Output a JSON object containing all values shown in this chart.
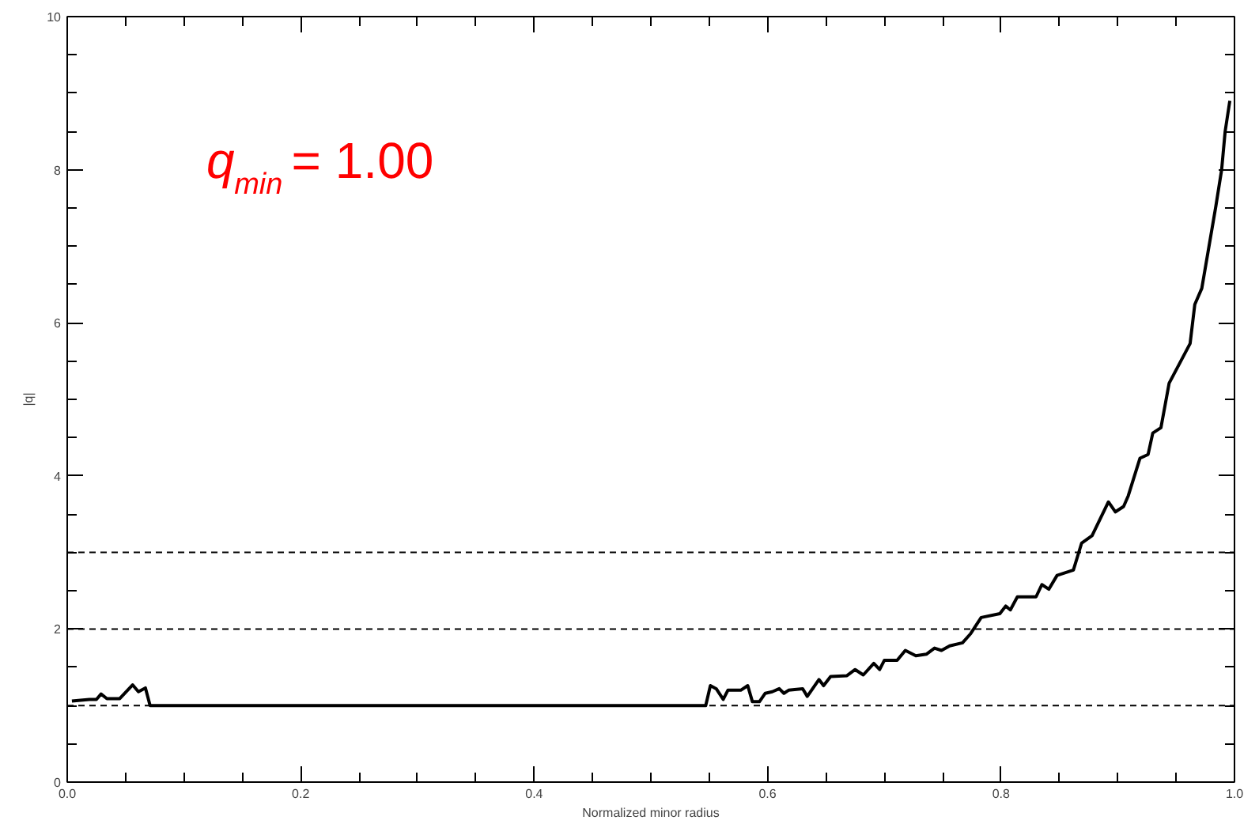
{
  "chart_data": {
    "type": "line",
    "xlabel": "Normalized minor radius",
    "ylabel": "|q|",
    "annotations": [
      "q$_{min}$ = 1.00"
    ],
    "x": [
      0.004,
      0.019,
      0.025,
      0.029,
      0.034,
      0.045,
      0.056,
      0.061,
      0.067,
      0.071,
      0.547,
      0.551,
      0.556,
      0.562,
      0.566,
      0.577,
      0.583,
      0.587,
      0.593,
      0.598,
      0.604,
      0.61,
      0.614,
      0.618,
      0.63,
      0.634,
      0.644,
      0.648,
      0.654,
      0.668,
      0.675,
      0.682,
      0.691,
      0.696,
      0.7,
      0.711,
      0.718,
      0.727,
      0.736,
      0.743,
      0.749,
      0.756,
      0.767,
      0.774,
      0.783,
      0.799,
      0.804,
      0.808,
      0.814,
      0.83,
      0.835,
      0.841,
      0.848,
      0.862,
      0.869,
      0.878,
      0.892,
      0.898,
      0.905,
      0.909,
      0.919,
      0.926,
      0.93,
      0.937,
      0.944,
      0.962,
      0.966,
      0.972,
      0.984,
      0.989,
      0.992,
      0.996
    ],
    "series": [
      {
        "color": "#000000",
        "values": [
          1.06,
          1.08,
          1.08,
          1.15,
          1.09,
          1.09,
          1.27,
          1.18,
          1.23,
          1.0,
          1.0,
          1.26,
          1.22,
          1.08,
          1.2,
          1.2,
          1.26,
          1.05,
          1.05,
          1.16,
          1.18,
          1.22,
          1.16,
          1.2,
          1.22,
          1.12,
          1.34,
          1.26,
          1.38,
          1.39,
          1.47,
          1.4,
          1.55,
          1.47,
          1.59,
          1.59,
          1.72,
          1.65,
          1.67,
          1.75,
          1.72,
          1.78,
          1.82,
          1.94,
          2.15,
          2.2,
          2.3,
          2.25,
          2.42,
          2.42,
          2.58,
          2.52,
          2.7,
          2.77,
          3.12,
          3.22,
          3.66,
          3.53,
          3.6,
          3.74,
          4.23,
          4.28,
          4.56,
          4.63,
          5.21,
          5.73,
          6.24,
          6.45,
          7.52,
          8.0,
          8.5,
          8.9
        ]
      }
    ],
    "xlim": [
      0,
      1
    ],
    "ylim": [
      0,
      10
    ],
    "xticks": [
      {
        "value": 0,
        "label": "0.0"
      },
      {
        "value": 0.05,
        "label": null
      },
      {
        "value": 0.1,
        "label": null
      },
      {
        "value": 0.15,
        "label": null
      },
      {
        "value": 0.2,
        "label": "0.2"
      },
      {
        "value": 0.25,
        "label": null
      },
      {
        "value": 0.3,
        "label": null
      },
      {
        "value": 0.35,
        "label": null
      },
      {
        "value": 0.4,
        "label": "0.4"
      },
      {
        "value": 0.45,
        "label": null
      },
      {
        "value": 0.5,
        "label": null
      },
      {
        "value": 0.55,
        "label": null
      },
      {
        "value": 0.6,
        "label": "0.6"
      },
      {
        "value": 0.65,
        "label": null
      },
      {
        "value": 0.7,
        "label": null
      },
      {
        "value": 0.75,
        "label": null
      },
      {
        "value": 0.8,
        "label": "0.8"
      },
      {
        "value": 0.85,
        "label": null
      },
      {
        "value": 0.9,
        "label": null
      },
      {
        "value": 0.95,
        "label": null
      },
      {
        "value": 1,
        "label": "1.0"
      }
    ],
    "yticks": [
      0,
      {
        "value": 0.5,
        "label": null
      },
      {
        "value": 1,
        "label": null
      },
      {
        "value": 1.5,
        "label": null
      },
      2,
      {
        "value": 2.5,
        "label": null
      },
      {
        "value": 3,
        "label": null
      },
      {
        "value": 3.5,
        "label": null
      },
      4,
      {
        "value": 4.5,
        "label": null
      },
      {
        "value": 5,
        "label": null
      },
      {
        "value": 5.5,
        "label": null
      },
      6,
      {
        "value": 6.5,
        "label": null
      },
      {
        "value": 7,
        "label": null
      },
      {
        "value": 7.5,
        "label": null
      },
      8,
      {
        "value": 8.5,
        "label": null
      },
      {
        "value": 9,
        "label": null
      },
      {
        "value": 9.5,
        "label": null
      },
      10
    ],
    "ref_lines": [
      {
        "axis": "y",
        "value": 1,
        "line_style": "dashed",
        "color": "#000000"
      },
      {
        "axis": "y",
        "value": 2,
        "line_style": "dashed",
        "color": "#000000"
      },
      {
        "axis": "y",
        "value": 3,
        "line_style": "dashed",
        "color": "#000000"
      }
    ],
    "grid": false,
    "marker": "none",
    "line_style": "solid"
  }
}
